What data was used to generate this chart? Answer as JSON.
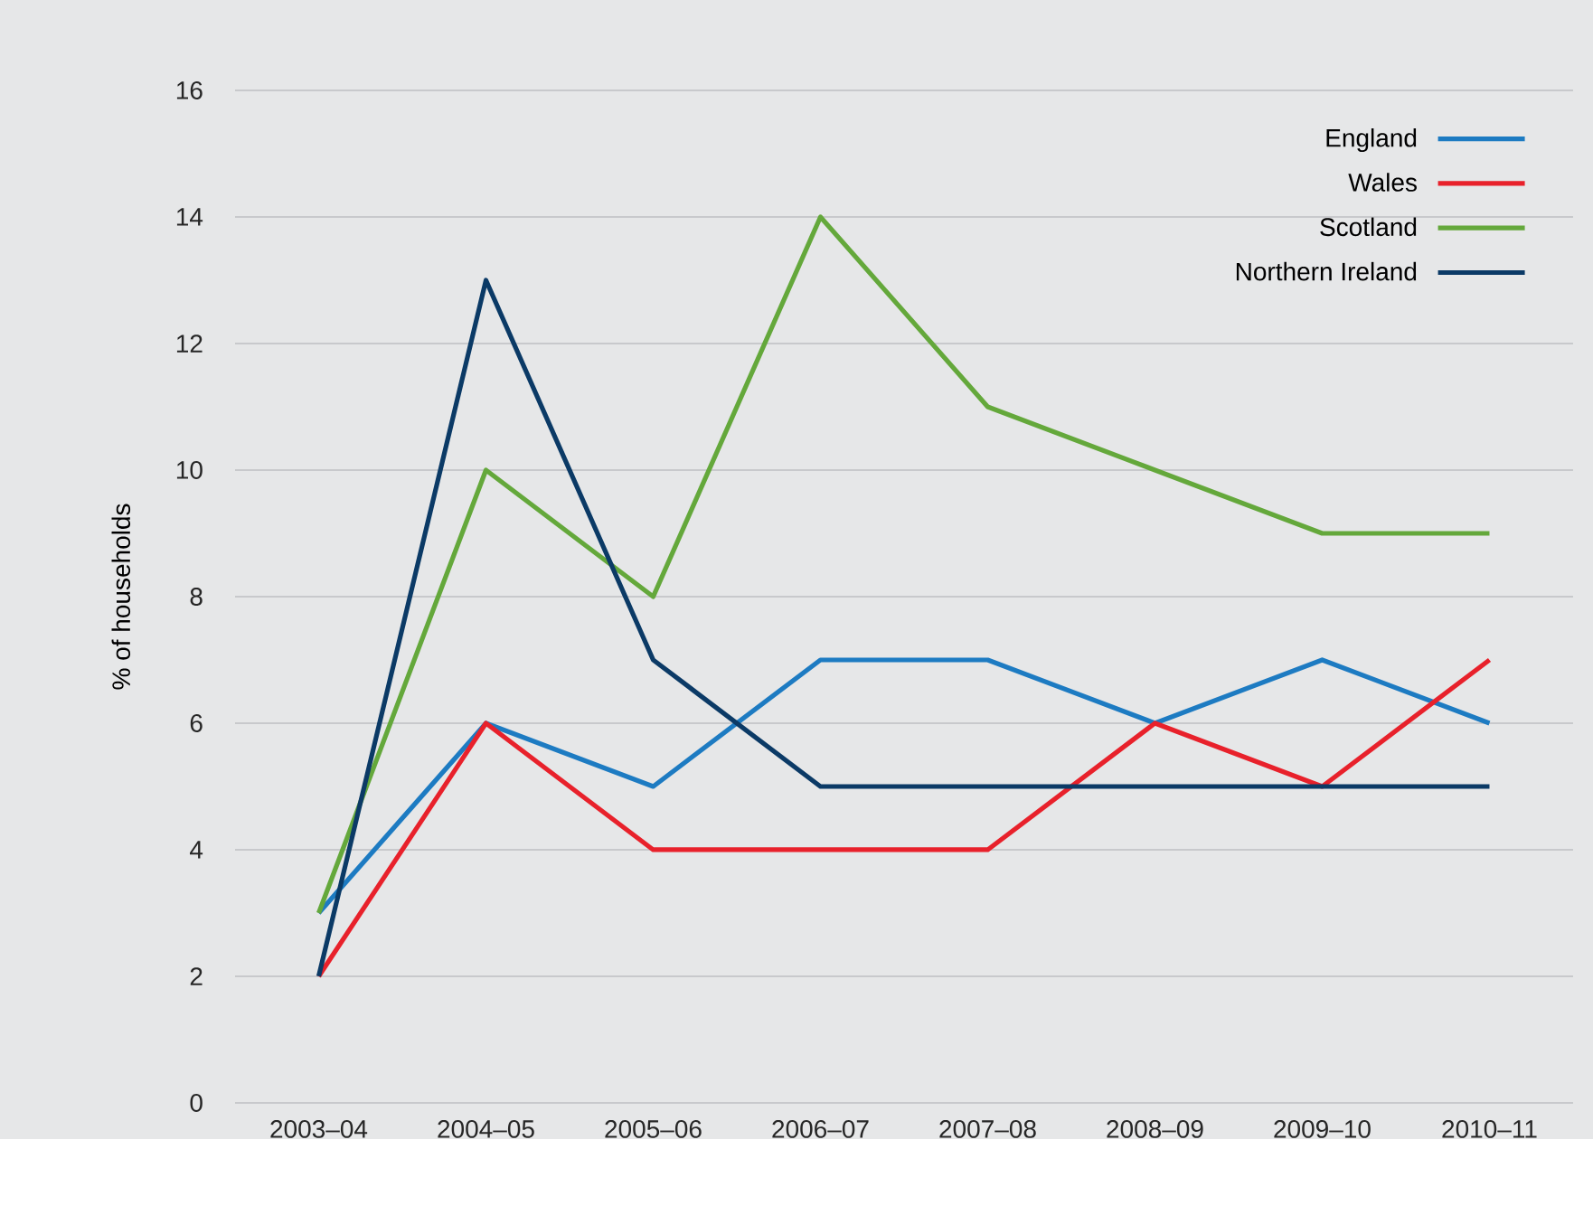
{
  "chart_data": {
    "type": "line",
    "ylabel": "% of households",
    "categories": [
      "2003–04",
      "2004–05",
      "2005–06",
      "2006–07",
      "2007–08",
      "2008–09",
      "2009–10",
      "2010–11"
    ],
    "series": [
      {
        "name": "England",
        "color": "#1d7bc2",
        "values": [
          3,
          6,
          5,
          7,
          7,
          6,
          7,
          6
        ]
      },
      {
        "name": "Wales",
        "color": "#e8212b",
        "values": [
          2,
          6,
          4,
          4,
          4,
          6,
          5,
          7
        ]
      },
      {
        "name": "Scotland",
        "color": "#64a83b",
        "values": [
          3,
          10,
          8,
          14,
          11,
          10,
          9,
          9
        ]
      },
      {
        "name": "Northern Ireland",
        "color": "#0b3a66",
        "values": [
          2,
          13,
          7,
          5,
          5,
          5,
          5,
          5
        ]
      }
    ],
    "ylim": [
      0,
      16
    ],
    "yticks": [
      0,
      2,
      4,
      6,
      8,
      10,
      12,
      14,
      16
    ],
    "grid": "y",
    "legend": "top right"
  }
}
